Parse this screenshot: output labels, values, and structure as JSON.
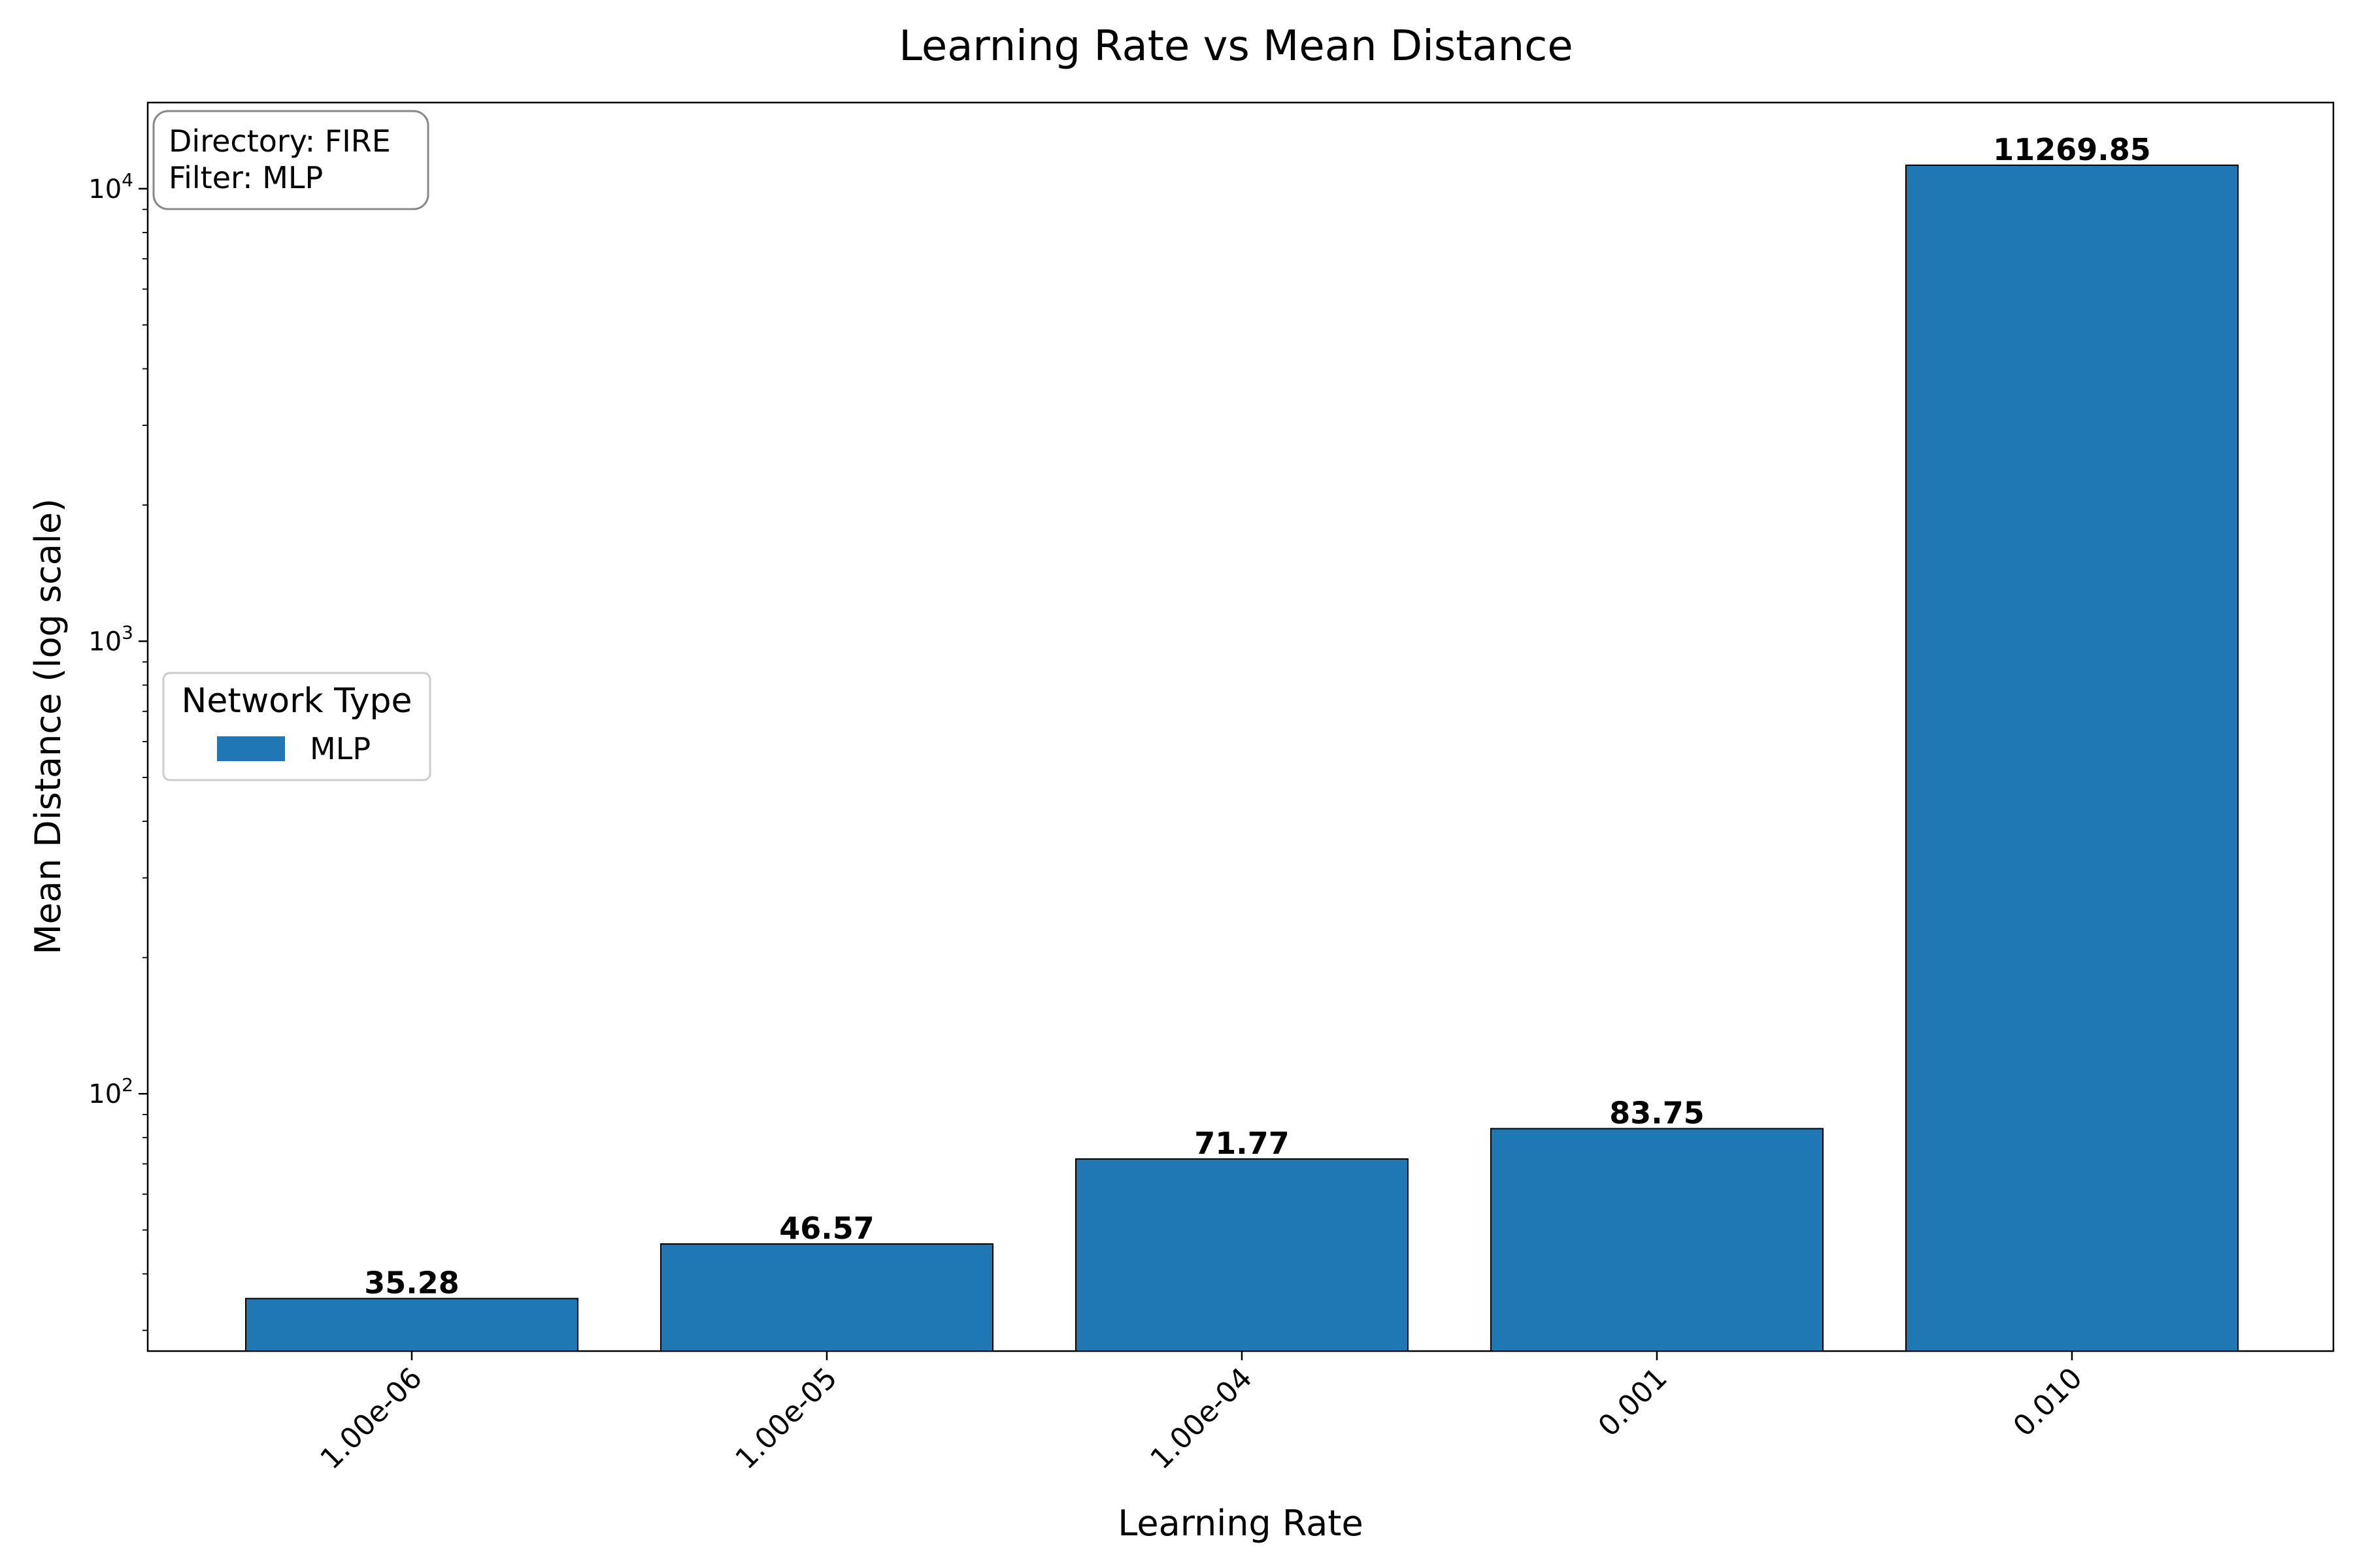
{
  "chart_data": {
    "type": "bar",
    "title": "Learning Rate vs Mean Distance",
    "xlabel": "Learning Rate",
    "ylabel": "Mean Distance (log scale)",
    "yscale": "log",
    "ylim": [
      27,
      15500
    ],
    "categories": [
      "1.00e-06",
      "1.00e-05",
      "1.00e-04",
      "0.001",
      "0.010"
    ],
    "values": [
      35.28,
      46.57,
      71.77,
      83.75,
      11269.85
    ],
    "value_labels": [
      "35.28",
      "46.57",
      "71.77",
      "83.75",
      "11269.85"
    ],
    "yticks": [
      {
        "base": "10",
        "exp": "2",
        "value": 100
      },
      {
        "base": "10",
        "exp": "3",
        "value": 1000
      },
      {
        "base": "10",
        "exp": "4",
        "value": 10000
      }
    ],
    "series": [
      {
        "name": "MLP",
        "color": "#1f77b4"
      }
    ],
    "legend": {
      "title": "Network Type",
      "placement": "center-left",
      "entries": [
        "MLP"
      ]
    },
    "info_box": {
      "lines": [
        "Directory: FIRE",
        "Filter: MLP"
      ],
      "placement": "top-left"
    },
    "grid": false,
    "bar_color": "#1f77b4",
    "xtick_rotation": 45
  }
}
